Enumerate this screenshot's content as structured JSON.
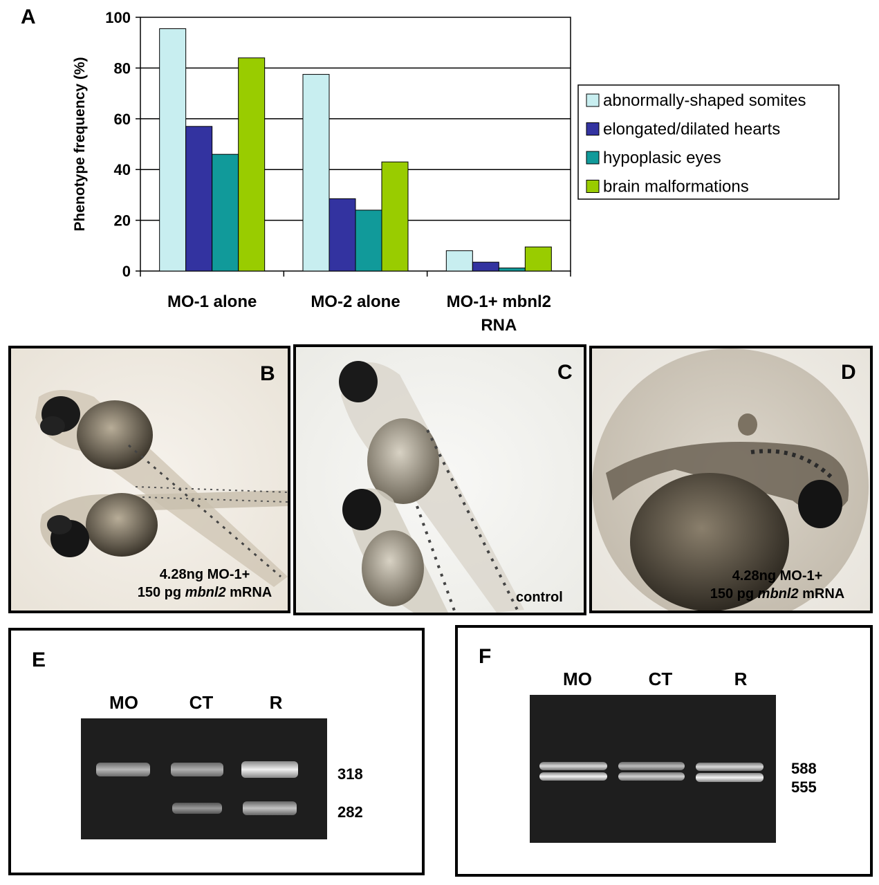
{
  "panels": {
    "a": "A",
    "b": "B",
    "c": "C",
    "d": "D",
    "e": "E",
    "f": "F"
  },
  "chart_data": {
    "type": "bar",
    "ylabel": "Phenotype frequency (%)",
    "xlabel": "",
    "ylim": [
      0,
      100
    ],
    "yticks": [
      "0",
      "20",
      "40",
      "60",
      "80",
      "100"
    ],
    "grid": true,
    "legend_position": "right",
    "categories": [
      "MO-1 alone",
      "MO-2 alone",
      "MO-1+ mbnl2 RNA"
    ],
    "series": [
      {
        "name": "abnormally-shaped somites",
        "color": "#c8eef0",
        "values": [
          95.5,
          77.5,
          8
        ]
      },
      {
        "name": "elongated/dilated hearts",
        "color": "#3333a0",
        "values": [
          57,
          28.5,
          3.5
        ]
      },
      {
        "name": "hypoplasic eyes",
        "color": "#119a9a",
        "values": [
          46,
          24,
          1.2
        ]
      },
      {
        "name": "brain malformations",
        "color": "#99cc00",
        "values": [
          84,
          43,
          9.5
        ]
      }
    ]
  },
  "photos": {
    "b_caption_line1": "4.28ng MO-1+",
    "b_caption_pre": "150 pg ",
    "b_caption_gene": "mbnl2",
    "b_caption_post": " mRNA",
    "c_caption": "control",
    "d_caption_line1": "4.28ng MO-1+",
    "d_caption_pre": "150 pg ",
    "d_caption_gene": "mbnl2",
    "d_caption_post": " mRNA"
  },
  "gel_e": {
    "lanes": [
      "MO",
      "CT",
      "R"
    ],
    "sizes": [
      "318",
      "282"
    ]
  },
  "gel_f": {
    "lanes": [
      "MO",
      "CT",
      "R"
    ],
    "sizes": [
      "588",
      "555"
    ]
  }
}
